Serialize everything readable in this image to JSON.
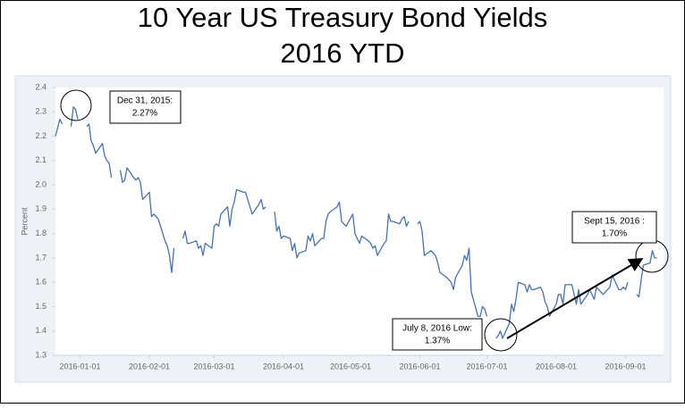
{
  "chart_data": {
    "type": "line",
    "title": [
      "10 Year US Treasury Bond Yields",
      "2016 YTD"
    ],
    "y_label": "Percent",
    "color": "#4a72a8",
    "grid": false,
    "xlim": [
      "2015-12-21",
      "2016-09-18"
    ],
    "xticks": [
      "2016-01-01",
      "2016-02-01",
      "2016-03-01",
      "2016-04-01",
      "2016-05-01",
      "2016-06-01",
      "2016-07-01",
      "2016-08-01",
      "2016-09-01"
    ],
    "ylim": [
      1.3,
      2.4
    ],
    "yticks": [
      1.3,
      1.4,
      1.5,
      1.6,
      1.7,
      1.8,
      1.9,
      {
        "value": 2,
        "label": "2.0"
      },
      2.1,
      2.2,
      2.3,
      2.4
    ],
    "annotations": [
      {
        "text": [
          "Dec 31, 2015:",
          "2.27%"
        ]
      },
      {
        "text": [
          "Sept 15, 2016 :",
          "1.70%"
        ]
      },
      {
        "text": [
          "July 8, 2016 Low:",
          "1.37%"
        ]
      }
    ],
    "x": [
      "2015-12-21",
      "2015-12-23",
      "2015-12-24",
      "2015-12-25",
      "2015-12-28",
      "2015-12-29",
      "2015-12-30",
      "2015-12-31",
      "2016-01-01",
      "2016-01-04",
      "2016-01-05",
      "2016-01-06",
      "2016-01-07",
      "2016-01-08",
      "2016-01-11",
      "2016-01-12",
      "2016-01-13",
      "2016-01-14",
      "2016-01-15",
      "2016-01-18",
      "2016-01-19",
      "2016-01-20",
      "2016-01-21",
      "2016-01-22",
      "2016-01-25",
      "2016-01-26",
      "2016-01-27",
      "2016-01-28",
      "2016-01-29",
      "2016-02-01",
      "2016-02-02",
      "2016-02-03",
      "2016-02-04",
      "2016-02-05",
      "2016-02-08",
      "2016-02-09",
      "2016-02-10",
      "2016-02-11",
      "2016-02-12",
      "2016-02-15",
      "2016-02-16",
      "2016-02-17",
      "2016-02-18",
      "2016-02-19",
      "2016-02-22",
      "2016-02-23",
      "2016-02-24",
      "2016-02-25",
      "2016-02-26",
      "2016-02-29",
      "2016-03-01",
      "2016-03-02",
      "2016-03-03",
      "2016-03-04",
      "2016-03-07",
      "2016-03-08",
      "2016-03-09",
      "2016-03-10",
      "2016-03-11",
      "2016-03-14",
      "2016-03-15",
      "2016-03-16",
      "2016-03-17",
      "2016-03-18",
      "2016-03-21",
      "2016-03-22",
      "2016-03-23",
      "2016-03-24",
      "2016-03-25",
      "2016-03-28",
      "2016-03-29",
      "2016-03-30",
      "2016-03-31",
      "2016-04-01",
      "2016-04-04",
      "2016-04-05",
      "2016-04-06",
      "2016-04-07",
      "2016-04-08",
      "2016-04-11",
      "2016-04-12",
      "2016-04-13",
      "2016-04-14",
      "2016-04-15",
      "2016-04-18",
      "2016-04-19",
      "2016-04-20",
      "2016-04-21",
      "2016-04-22",
      "2016-04-25",
      "2016-04-26",
      "2016-04-27",
      "2016-04-28",
      "2016-04-29",
      "2016-05-02",
      "2016-05-03",
      "2016-05-04",
      "2016-05-05",
      "2016-05-06",
      "2016-05-09",
      "2016-05-10",
      "2016-05-11",
      "2016-05-12",
      "2016-05-13",
      "2016-05-16",
      "2016-05-17",
      "2016-05-18",
      "2016-05-19",
      "2016-05-20",
      "2016-05-23",
      "2016-05-24",
      "2016-05-25",
      "2016-05-26",
      "2016-05-27",
      "2016-05-30",
      "2016-05-31",
      "2016-06-01",
      "2016-06-02",
      "2016-06-03",
      "2016-06-06",
      "2016-06-07",
      "2016-06-08",
      "2016-06-09",
      "2016-06-10",
      "2016-06-13",
      "2016-06-14",
      "2016-06-15",
      "2016-06-16",
      "2016-06-17",
      "2016-06-20",
      "2016-06-21",
      "2016-06-22",
      "2016-06-23",
      "2016-06-24",
      "2016-06-27",
      "2016-06-28",
      "2016-06-29",
      "2016-06-30",
      "2016-07-01",
      "2016-07-04",
      "2016-07-05",
      "2016-07-06",
      "2016-07-07",
      "2016-07-08",
      "2016-07-11",
      "2016-07-12",
      "2016-07-13",
      "2016-07-14",
      "2016-07-15",
      "2016-07-18",
      "2016-07-19",
      "2016-07-20",
      "2016-07-21",
      "2016-07-22",
      "2016-07-25",
      "2016-07-26",
      "2016-07-27",
      "2016-07-28",
      "2016-07-29",
      "2016-08-01",
      "2016-08-02",
      "2016-08-03",
      "2016-08-04",
      "2016-08-05",
      "2016-08-08",
      "2016-08-09",
      "2016-08-10",
      "2016-08-11",
      "2016-08-12",
      "2016-08-15",
      "2016-08-16",
      "2016-08-17",
      "2016-08-18",
      "2016-08-19",
      "2016-08-22",
      "2016-08-23",
      "2016-08-24",
      "2016-08-25",
      "2016-08-26",
      "2016-08-29",
      "2016-08-30",
      "2016-08-31",
      "2016-09-01",
      "2016-09-02",
      "2016-09-05",
      "2016-09-06",
      "2016-09-07",
      "2016-09-08",
      "2016-09-09",
      "2016-09-12",
      "2016-09-13",
      "2016-09-14",
      "2016-09-15"
    ],
    "values": [
      2.2,
      2.27,
      2.25,
      null,
      2.24,
      2.32,
      2.31,
      2.27,
      null,
      2.24,
      2.25,
      2.18,
      2.16,
      2.13,
      2.17,
      2.12,
      2.1,
      2.09,
      2.03,
      null,
      2.06,
      2.01,
      2.02,
      2.07,
      2.03,
      2.02,
      2.03,
      2.01,
      1.94,
      1.97,
      1.87,
      1.88,
      1.87,
      1.86,
      1.77,
      1.75,
      1.71,
      1.64,
      1.74,
      null,
      1.78,
      1.81,
      1.76,
      1.76,
      1.77,
      1.74,
      1.75,
      1.71,
      1.76,
      1.74,
      1.83,
      1.84,
      1.83,
      1.88,
      1.91,
      1.83,
      1.9,
      1.93,
      1.98,
      1.97,
      1.97,
      1.94,
      1.91,
      1.88,
      1.92,
      1.94,
      1.9,
      1.91,
      null,
      1.89,
      1.81,
      1.83,
      1.78,
      1.79,
      1.78,
      1.73,
      1.76,
      1.7,
      1.72,
      1.73,
      1.79,
      1.77,
      1.8,
      1.75,
      1.78,
      1.78,
      1.85,
      1.88,
      1.89,
      1.91,
      1.93,
      1.85,
      1.84,
      1.83,
      1.88,
      1.8,
      1.78,
      1.76,
      1.79,
      1.77,
      1.76,
      1.74,
      1.75,
      1.71,
      1.76,
      1.77,
      1.88,
      1.85,
      1.85,
      1.84,
      1.86,
      1.87,
      1.83,
      1.85,
      null,
      1.84,
      1.85,
      1.81,
      1.71,
      1.73,
      1.72,
      1.71,
      1.68,
      1.64,
      1.62,
      1.61,
      1.6,
      1.57,
      1.62,
      1.67,
      1.71,
      1.69,
      1.74,
      1.56,
      1.46,
      1.46,
      1.5,
      1.49,
      1.46,
      null,
      1.37,
      1.38,
      1.4,
      1.37,
      1.43,
      1.51,
      1.48,
      1.53,
      1.6,
      1.59,
      1.56,
      1.59,
      1.57,
      1.57,
      1.58,
      1.56,
      1.52,
      1.5,
      1.46,
      1.51,
      1.55,
      1.55,
      1.51,
      1.59,
      1.59,
      1.55,
      1.51,
      1.57,
      1.51,
      1.55,
      1.57,
      1.55,
      1.53,
      1.58,
      1.55,
      1.56,
      1.57,
      1.58,
      1.63,
      1.57,
      1.57,
      1.58,
      1.57,
      1.6,
      null,
      1.55,
      1.54,
      1.61,
      1.67,
      1.68,
      1.73,
      1.7,
      1.7
    ]
  }
}
